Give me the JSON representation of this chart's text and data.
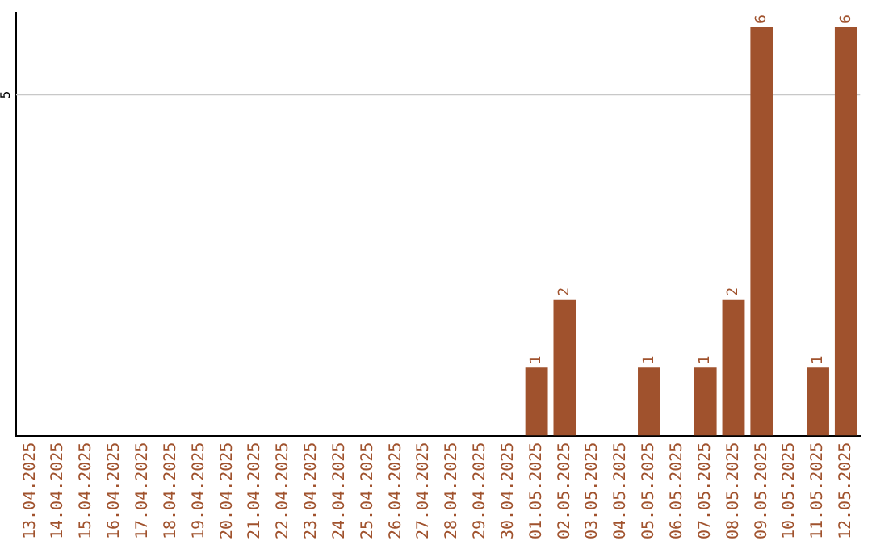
{
  "chart_data": {
    "type": "bar",
    "categories": [
      "13.04.2025",
      "14.04.2025",
      "15.04.2025",
      "16.04.2025",
      "17.04.2025",
      "18.04.2025",
      "19.04.2025",
      "20.04.2025",
      "21.04.2025",
      "22.04.2025",
      "23.04.2025",
      "24.04.2025",
      "25.04.2025",
      "26.04.2025",
      "27.04.2025",
      "28.04.2025",
      "29.04.2025",
      "30.04.2025",
      "01.05.2025",
      "02.05.2025",
      "03.05.2025",
      "04.05.2025",
      "05.05.2025",
      "06.05.2025",
      "07.05.2025",
      "08.05.2025",
      "09.05.2025",
      "10.05.2025",
      "11.05.2025",
      "12.05.2025"
    ],
    "values": [
      null,
      null,
      null,
      null,
      null,
      null,
      null,
      null,
      null,
      null,
      null,
      null,
      null,
      null,
      null,
      null,
      null,
      null,
      1,
      2,
      null,
      null,
      1,
      null,
      1,
      2,
      6,
      null,
      1,
      6
    ],
    "data_labels": true,
    "color": "#a0522d",
    "ylim": [
      0,
      6.2
    ],
    "ref_lines": [
      {
        "axis": "y",
        "value": 5,
        "label": "5",
        "color": "#c8c8c8"
      }
    ],
    "legend": false
  }
}
